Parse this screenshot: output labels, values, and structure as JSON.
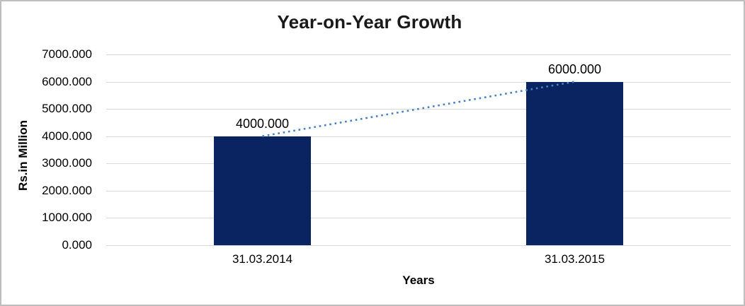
{
  "chart_data": {
    "type": "bar",
    "title": "Year-on-Year Growth",
    "xlabel": "Years",
    "ylabel": "Rs.in Million",
    "categories": [
      "31.03.2014",
      "31.03.2015"
    ],
    "values": [
      4000,
      6000
    ],
    "data_labels": [
      "4000.000",
      "6000.000"
    ],
    "ylim": [
      0,
      7000
    ],
    "y_tick_step": 1000,
    "y_tick_labels": [
      "0.000",
      "1000.000",
      "2000.000",
      "3000.000",
      "4000.000",
      "5000.000",
      "6000.000",
      "7000.000"
    ],
    "grid": true,
    "legend": "none",
    "bar_color": "#0a2361",
    "gridline_color": "#d9d9d9",
    "trendline": {
      "type": "linear",
      "style": "dotted",
      "color": "#4682c3",
      "from_value": 4000,
      "to_value": 6000
    }
  }
}
